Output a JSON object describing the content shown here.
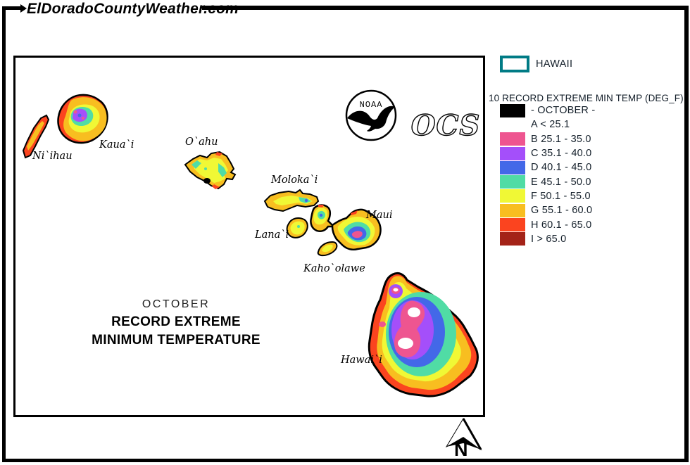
{
  "page": {
    "site_title": "ElDoradoCountyWeather.com"
  },
  "map": {
    "islands": [
      {
        "label": "Ni`ihau"
      },
      {
        "label": "Kaua`i"
      },
      {
        "label": "O`ahu"
      },
      {
        "label": "Moloka`i"
      },
      {
        "label": "Lana`i"
      },
      {
        "label": "Maui"
      },
      {
        "label": "Kaho`olawe"
      },
      {
        "label": "Hawai`i"
      }
    ],
    "center_text": {
      "month": "OCTOBER",
      "line2": "RECORD EXTREME",
      "line3": "MINIMUM TEMPERATURE"
    },
    "noaa_text": "NOAA",
    "ocs_text": "OCS",
    "north_label": "N"
  },
  "legend": {
    "region_label": "HAWAII",
    "region_box_border_color": "#007B85",
    "title": "10 RECORD EXTREME MIN TEMP (DEG_F)",
    "text_color": "#15202b",
    "palette": {
      "A": "#000000",
      "B": "#EE5590",
      "C": "#A44FFA",
      "D": "#4368E8",
      "E": "#50DCA5",
      "F": "#F0F835",
      "G": "#F8BE20",
      "H": "#FB441F",
      "I": "#A42318",
      "W": "#FFFFFF",
      "outline": "#000000"
    },
    "rows": [
      {
        "swatch": "A",
        "label": "- OCTOBER -"
      },
      {
        "swatch": null,
        "label": "A < 25.1"
      },
      {
        "swatch": "B",
        "label": "B 25.1 - 35.0"
      },
      {
        "swatch": "C",
        "label": "C 35.1 - 40.0"
      },
      {
        "swatch": "D",
        "label": "D 40.1 - 45.0"
      },
      {
        "swatch": "E",
        "label": "E 45.1 - 50.0"
      },
      {
        "swatch": "F",
        "label": "F 50.1 - 55.0"
      },
      {
        "swatch": "G",
        "label": "G 55.1 - 60.0"
      },
      {
        "swatch": "H",
        "label": "H 60.1 - 65.0"
      },
      {
        "swatch": "I",
        "label": "I > 65.0"
      }
    ]
  }
}
